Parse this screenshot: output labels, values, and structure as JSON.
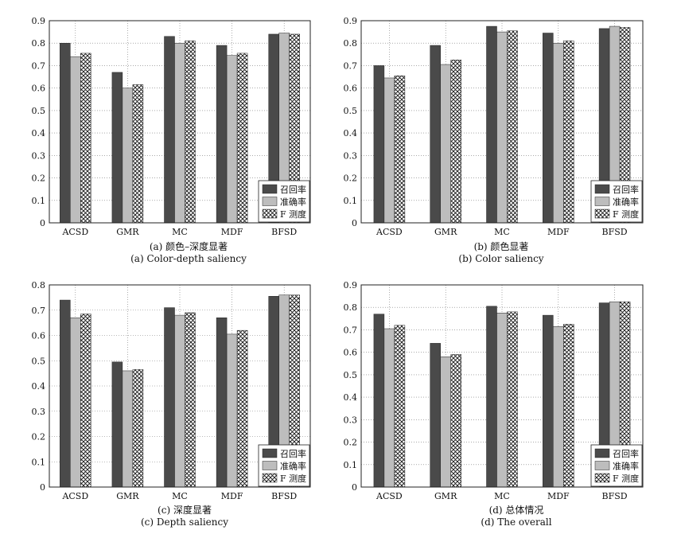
{
  "legend": {
    "recall": "召回率",
    "precision": "准确率",
    "fmeasure": "F 测度"
  },
  "chart_data": [
    {
      "type": "bar",
      "caption_zh": "(a) 颜色–深度显著",
      "caption_en": "(a) Color-depth saliency",
      "categories": [
        "ACSD",
        "GMR",
        "MC",
        "MDF",
        "BFSD"
      ],
      "ylim": [
        0,
        0.9
      ],
      "yticks": [
        0,
        0.1,
        0.2,
        0.3,
        0.4,
        0.5,
        0.6,
        0.7,
        0.8,
        0.9
      ],
      "grid": true,
      "legend_position": "bottom-right",
      "series": [
        {
          "key": "recall",
          "values": [
            0.8,
            0.67,
            0.83,
            0.79,
            0.84
          ]
        },
        {
          "key": "precision",
          "values": [
            0.74,
            0.6,
            0.8,
            0.745,
            0.845
          ]
        },
        {
          "key": "fmeasure",
          "values": [
            0.755,
            0.615,
            0.81,
            0.755,
            0.84
          ]
        }
      ]
    },
    {
      "type": "bar",
      "caption_zh": "(b) 颜色显著",
      "caption_en": "(b) Color saliency",
      "categories": [
        "ACSD",
        "GMR",
        "MC",
        "MDF",
        "BFSD"
      ],
      "ylim": [
        0,
        0.9
      ],
      "yticks": [
        0,
        0.1,
        0.2,
        0.3,
        0.4,
        0.5,
        0.6,
        0.7,
        0.8,
        0.9
      ],
      "grid": true,
      "legend_position": "bottom-right",
      "series": [
        {
          "key": "recall",
          "values": [
            0.7,
            0.79,
            0.875,
            0.845,
            0.865
          ]
        },
        {
          "key": "precision",
          "values": [
            0.645,
            0.705,
            0.85,
            0.8,
            0.875
          ]
        },
        {
          "key": "fmeasure",
          "values": [
            0.655,
            0.725,
            0.855,
            0.81,
            0.87
          ]
        }
      ]
    },
    {
      "type": "bar",
      "caption_zh": "(c) 深度显著",
      "caption_en": "(c) Depth saliency",
      "categories": [
        "ACSD",
        "GMR",
        "MC",
        "MDF",
        "BFSD"
      ],
      "ylim": [
        0,
        0.8
      ],
      "yticks": [
        0,
        0.1,
        0.2,
        0.3,
        0.4,
        0.5,
        0.6,
        0.7,
        0.8
      ],
      "grid": true,
      "legend_position": "bottom-right",
      "series": [
        {
          "key": "recall",
          "values": [
            0.74,
            0.495,
            0.71,
            0.67,
            0.755
          ]
        },
        {
          "key": "precision",
          "values": [
            0.67,
            0.46,
            0.68,
            0.605,
            0.76
          ]
        },
        {
          "key": "fmeasure",
          "values": [
            0.685,
            0.465,
            0.69,
            0.62,
            0.76
          ]
        }
      ]
    },
    {
      "type": "bar",
      "caption_zh": "(d) 总体情况",
      "caption_en": "(d) The overall",
      "categories": [
        "ACSD",
        "GMR",
        "MC",
        "MDF",
        "BFSD"
      ],
      "ylim": [
        0,
        0.9
      ],
      "yticks": [
        0,
        0.1,
        0.2,
        0.3,
        0.4,
        0.5,
        0.6,
        0.7,
        0.8,
        0.9
      ],
      "grid": true,
      "legend_position": "bottom-right",
      "series": [
        {
          "key": "recall",
          "values": [
            0.77,
            0.64,
            0.805,
            0.765,
            0.82
          ]
        },
        {
          "key": "precision",
          "values": [
            0.705,
            0.58,
            0.775,
            0.715,
            0.825
          ]
        },
        {
          "key": "fmeasure",
          "values": [
            0.72,
            0.59,
            0.78,
            0.725,
            0.825
          ]
        }
      ]
    }
  ]
}
